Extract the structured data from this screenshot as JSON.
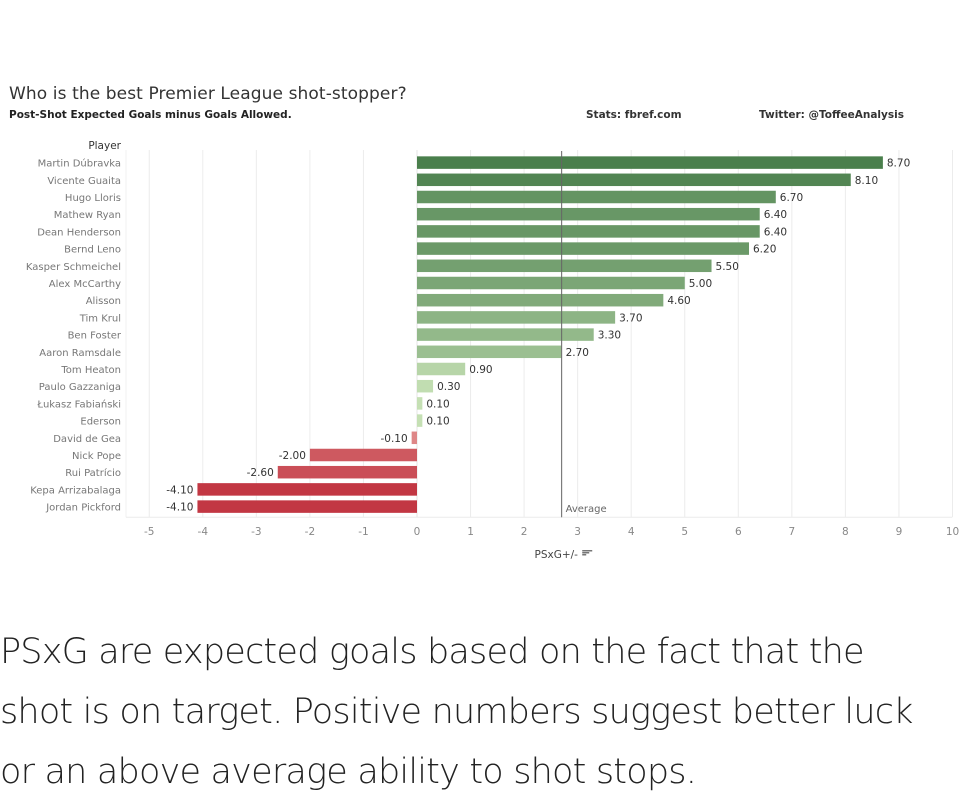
{
  "header": {
    "title": "Who is the best Premier League shot-stopper?",
    "subtitle": "Post-Shot Expected Goals minus Goals Allowed.",
    "source": "Stats: fbref.com",
    "twitter": "Twitter: @ToffeeAnalysis"
  },
  "chart_data": {
    "type": "bar",
    "orientation": "horizontal",
    "title": "Who is the best Premier League shot-stopper?",
    "subtitle": "Post-Shot Expected Goals minus Goals Allowed.",
    "row_header": "Player",
    "xlabel": "PSxG+/-",
    "xlim": [
      -5,
      10
    ],
    "xticks": [
      -5,
      -4,
      -3,
      -2,
      -1,
      0,
      1,
      2,
      3,
      4,
      5,
      6,
      7,
      8,
      9,
      10
    ],
    "grid": true,
    "reference_line": {
      "label": "Average",
      "value": 2.7
    },
    "categories": [
      "Martin Dúbravka",
      "Vicente Guaita",
      "Hugo Lloris",
      "Mathew Ryan",
      "Dean Henderson",
      "Bernd Leno",
      "Kasper Schmeichel",
      "Alex McCarthy",
      "Alisson",
      "Tim Krul",
      "Ben Foster",
      "Aaron Ramsdale",
      "Tom Heaton",
      "Paulo Gazzaniga",
      "Łukasz Fabiański",
      "Ederson",
      "David de Gea",
      "Nick Pope",
      "Rui Patrício",
      "Kepa Arrizabalaga",
      "Jordan Pickford"
    ],
    "values": [
      8.7,
      8.1,
      6.7,
      6.4,
      6.4,
      6.2,
      5.5,
      5.0,
      4.6,
      3.7,
      3.3,
      2.7,
      0.9,
      0.3,
      0.1,
      0.1,
      -0.1,
      -2.0,
      -2.6,
      -4.1,
      -4.1
    ],
    "value_labels": [
      "8.70",
      "8.10",
      "6.70",
      "6.40",
      "6.40",
      "6.20",
      "5.50",
      "5.00",
      "4.60",
      "3.70",
      "3.30",
      "2.70",
      "0.90",
      "0.30",
      "0.10",
      "0.10",
      "-0.10",
      "-2.00",
      "-2.60",
      "-4.10",
      "-4.10"
    ],
    "colors": {
      "positive_high": "#4a7f4c",
      "positive_low": "#c7e2b6",
      "negative_low": "#e08c8c",
      "negative_high": "#c23743",
      "reference_line": "#666666",
      "grid": "#ececec",
      "axis_text": "#888888",
      "label_text": "#333333"
    }
  },
  "caption": {
    "lines": [
      "PSxG are expected goals based on the fact that the",
      "shot is on target. Positive numbers suggest better luck",
      "or an above average ability to shot stops."
    ]
  }
}
